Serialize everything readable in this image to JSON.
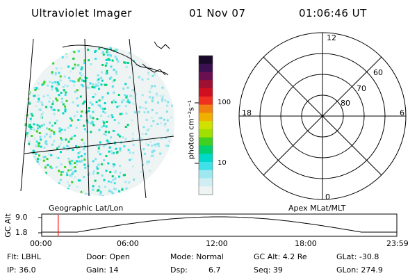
{
  "header": {
    "title": "Ultraviolet Imager",
    "date": "01 Nov 07",
    "time": "01:06:46 UT"
  },
  "colorbar": {
    "unit_label": "photon cm⁻²s⁻¹",
    "ticks": [
      "100",
      "10"
    ],
    "colors": [
      "#1a0a2a",
      "#3a1050",
      "#6a1050",
      "#a01030",
      "#d01020",
      "#f03020",
      "#f08010",
      "#f0b000",
      "#d0e000",
      "#a0e000",
      "#40d020",
      "#00d070",
      "#00d8c8",
      "#40e0e8",
      "#a0e8f0",
      "#d0eef2",
      "#eef4f4"
    ]
  },
  "left_panel": {
    "label": "Geographic Lat/Lon"
  },
  "right_panel": {
    "label": "Apex MLat/MLT",
    "mlt_labels": {
      "top": "12",
      "left": "18",
      "right": "6",
      "bottom": "0"
    },
    "mlat_labels": [
      "60",
      "70",
      "80"
    ]
  },
  "altitude_plot": {
    "ylabel": "GC Alt",
    "yticks": [
      "9.0",
      "1.8"
    ],
    "xticks": [
      "00:00",
      "06:00",
      "12:00",
      "18:00",
      "23:59"
    ],
    "marker_time": "01:06:46",
    "marker_color": "#ff0000"
  },
  "info": {
    "flt": "Flt: LBHL",
    "ip": "IP: 36.0",
    "door": "Door: Open",
    "gain": "Gain: 14",
    "mode": "Mode: Normal",
    "dsp_label": "Dsp:",
    "dsp_value": "6.7",
    "gc_alt": "GC Alt: 4.2 Re",
    "seq": "Seq: 39",
    "glat": "GLat: -30.8",
    "glon": "GLon: 274.9"
  }
}
